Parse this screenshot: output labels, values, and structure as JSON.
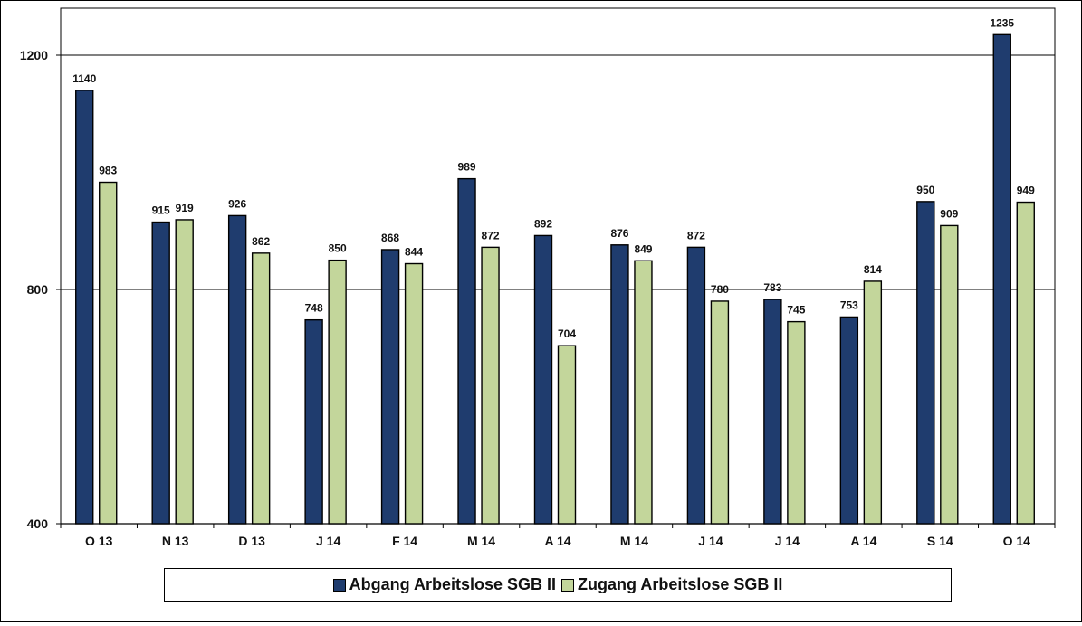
{
  "chart_data": {
    "type": "bar",
    "categories": [
      "O 13",
      "N 13",
      "D 13",
      "J 14",
      "F 14",
      "M 14",
      "A 14",
      "M 14",
      "J 14",
      "J 14",
      "A 14",
      "S 14",
      "O 14"
    ],
    "series": [
      {
        "name": "Abgang Arbeitslose SGB II",
        "values": [
          1140,
          915,
          926,
          748,
          868,
          989,
          892,
          876,
          872,
          783,
          753,
          950,
          1235
        ],
        "color": "#1f3c6e"
      },
      {
        "name": "Zugang Arbeitslose SGB II",
        "values": [
          983,
          919,
          862,
          850,
          844,
          872,
          704,
          849,
          780,
          745,
          814,
          909,
          949
        ],
        "color": "#c3d69b"
      }
    ],
    "yticks": [
      400,
      800,
      1200
    ],
    "ylim": [
      400,
      1260
    ],
    "grid": true,
    "legend_position": "bottom",
    "title": "",
    "xlabel": "",
    "ylabel": ""
  }
}
